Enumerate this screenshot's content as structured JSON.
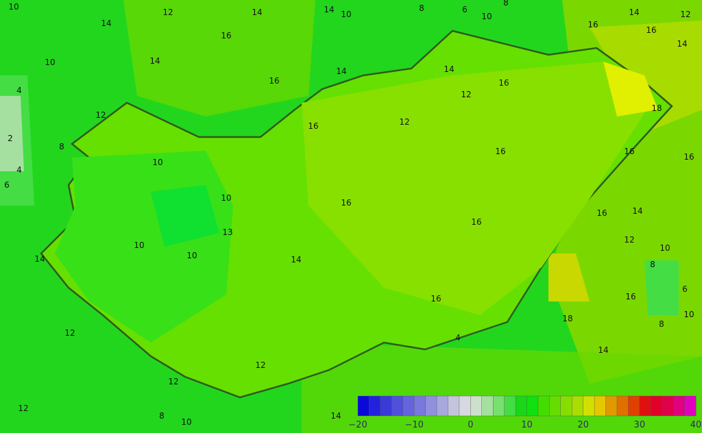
{
  "map": {
    "region": "Hungary",
    "background_color": "#22d61e",
    "contour_labels": [
      "10",
      "14",
      "12",
      "14",
      "14",
      "10",
      "8",
      "6",
      "10",
      "8",
      "14",
      "12",
      "4",
      "2",
      "8",
      "4",
      "6",
      "10",
      "14",
      "12",
      "16",
      "14",
      "16",
      "16",
      "14",
      "12",
      "16",
      "16",
      "14",
      "16",
      "10",
      "10",
      "13",
      "10",
      "10",
      "14",
      "16",
      "16",
      "16",
      "16",
      "18",
      "16",
      "16",
      "16",
      "14",
      "12",
      "10",
      "8",
      "6",
      "18",
      "16",
      "10",
      "8",
      "14",
      "12",
      "14",
      "12",
      "12",
      "12",
      "8",
      "10",
      "12",
      "14",
      "4"
    ]
  },
  "colorbar": {
    "ticks": [
      "−20",
      "−10",
      "0",
      "10",
      "20",
      "30",
      "40"
    ],
    "min": -20,
    "max": 40,
    "step": 2,
    "colors": [
      "#0a0ad8",
      "#2222dd",
      "#3a3ad8",
      "#5050dd",
      "#6464dd",
      "#7878dd",
      "#9090dd",
      "#a8a8dd",
      "#c4c4dd",
      "#d8d8e0",
      "#cce0cc",
      "#a6e0a0",
      "#78e070",
      "#44dd44",
      "#18d818",
      "#10e010",
      "#44dd00",
      "#66dd00",
      "#88dd00",
      "#aadd00",
      "#d2e000",
      "#e6c800",
      "#e09a00",
      "#e07000",
      "#e04000",
      "#e01010",
      "#e0002a",
      "#e0004a",
      "#e00080",
      "#e000c0"
    ]
  }
}
